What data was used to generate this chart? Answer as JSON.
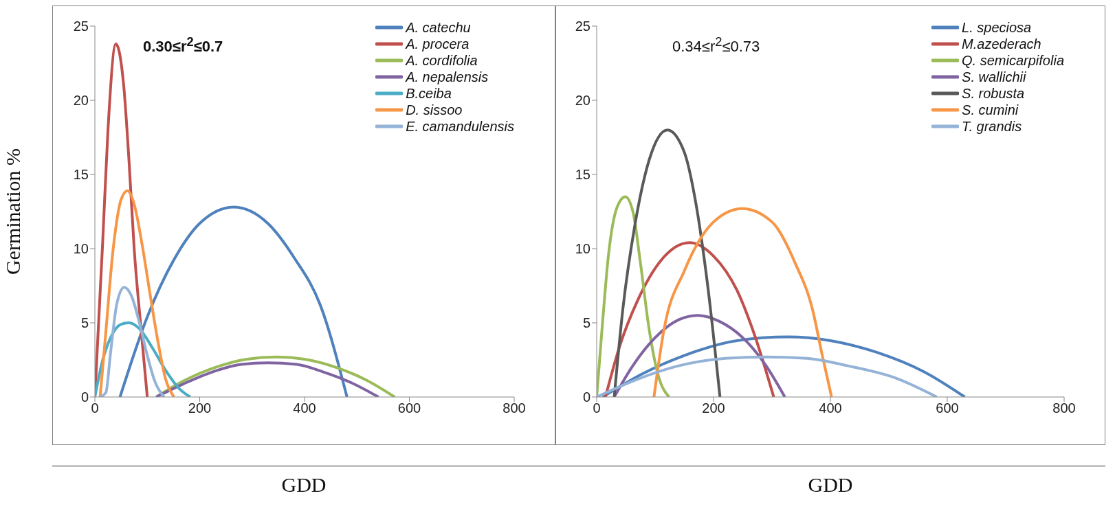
{
  "chart_data": [
    {
      "type": "line",
      "xlabel": "GDD",
      "ylabel": "Germination %",
      "annotations": [
        "0.30≤r$^{2}$≤0.7"
      ],
      "xlim": [
        0,
        800
      ],
      "xticks": [
        0,
        200,
        400,
        600,
        800
      ],
      "ylim": [
        0,
        25
      ],
      "yticks": [
        0,
        5,
        10,
        15,
        20,
        25
      ],
      "legend": "top right",
      "series": [
        {
          "name": "A. catechu",
          "color": "#4f81bd",
          "x": [
            48,
            100,
            150,
            200,
            265,
            330,
            380,
            430,
            481
          ],
          "values": [
            0,
            5.4,
            9.2,
            11.7,
            12.8,
            11.7,
            9.4,
            6.2,
            0
          ]
        },
        {
          "name": "A. procera",
          "color": "#c0504d",
          "x": [
            0,
            15,
            25,
            40,
            55,
            65,
            75,
            87,
            100
          ],
          "values": [
            0,
            10.5,
            18,
            23.8,
            21,
            16,
            10,
            5,
            0
          ]
        },
        {
          "name": "A. cordifolia",
          "color": "#9bbb59",
          "x": [
            117,
            170,
            230,
            290,
            347,
            400,
            460,
            520,
            572
          ],
          "values": [
            0,
            1.1,
            2,
            2.55,
            2.7,
            2.55,
            2,
            1.1,
            0
          ]
        },
        {
          "name": "A. nepalensis",
          "color": "#8064a2",
          "x": [
            117,
            170,
            225,
            280,
            330,
            385,
            435,
            490,
            541
          ],
          "values": [
            0,
            0.9,
            1.7,
            2.2,
            2.3,
            2.2,
            1.7,
            0.95,
            0
          ]
        },
        {
          "name": "B.ceiba",
          "color": "#4bacc6",
          "x": [
            0,
            15,
            30,
            50,
            65,
            85,
            110,
            135,
            160,
            182
          ],
          "values": [
            0,
            2.5,
            4,
            4.9,
            5,
            4.6,
            3.3,
            1.8,
            0.6,
            0
          ]
        },
        {
          "name": "D. sissoo",
          "color": "#f79646",
          "x": [
            10,
            20,
            35,
            50,
            62,
            75,
            90,
            105,
            120,
            135,
            151
          ],
          "values": [
            0,
            4,
            10,
            13.3,
            13.9,
            13,
            10.3,
            7,
            3.8,
            1.2,
            0
          ]
        },
        {
          "name": "E. camandulensis",
          "color": "#95b3d7",
          "x": [
            10,
            21,
            30,
            42,
            56,
            70,
            85,
            100,
            115,
            132
          ],
          "values": [
            0,
            0.3,
            3,
            6.3,
            7.4,
            6.8,
            5,
            2.8,
            1,
            0
          ]
        }
      ]
    },
    {
      "type": "line",
      "xlabel": "GDD",
      "annotations": [
        "0.34≤r$^{2}$≤0.73"
      ],
      "xlim": [
        0,
        800
      ],
      "xticks": [
        0,
        200,
        400,
        600,
        800
      ],
      "ylim": [
        0,
        25
      ],
      "yticks": [
        0,
        5,
        10,
        15,
        20,
        25
      ],
      "legend": "top right",
      "series": [
        {
          "name": "L. speciosa",
          "color": "#4f81bd",
          "x": [
            10,
            80,
            150,
            240,
            327,
            400,
            480,
            560,
            630
          ],
          "values": [
            0,
            1.6,
            2.8,
            3.8,
            4.05,
            3.8,
            3,
            1.7,
            0
          ]
        },
        {
          "name": "M.azederach",
          "color": "#c0504d",
          "x": [
            15,
            40,
            70,
            110,
            159,
            200,
            240,
            270,
            303
          ],
          "values": [
            0,
            3.5,
            6.5,
            9.2,
            10.4,
            9.5,
            7.2,
            4.2,
            0
          ]
        },
        {
          "name": "Q. semicarpifolia",
          "color": "#9bbb59",
          "x": [
            0,
            10,
            20,
            35,
            49,
            62,
            75,
            90,
            105,
            124
          ],
          "values": [
            0,
            5,
            9.5,
            12.8,
            13.5,
            12.5,
            9,
            4.5,
            1.5,
            0
          ]
        },
        {
          "name": "S. wallichii",
          "color": "#8064a2",
          "x": [
            30,
            60,
            100,
            140,
            173,
            210,
            250,
            290,
            322
          ],
          "values": [
            0,
            2,
            4,
            5.2,
            5.5,
            5.1,
            4,
            2.1,
            0
          ]
        },
        {
          "name": "S. robusta",
          "color": "#595959",
          "x": [
            30,
            45,
            65,
            90,
            121,
            150,
            170,
            190,
            211
          ],
          "values": [
            0,
            6,
            11.5,
            16,
            18,
            16.5,
            13,
            7.5,
            0
          ]
        },
        {
          "name": "S. cumini",
          "color": "#f79646",
          "x": [
            98,
            115,
            150,
            200,
            249,
            300,
            340,
            370,
            385,
            402
          ],
          "values": [
            0,
            4.5,
            8.5,
            11.8,
            12.7,
            11.8,
            9,
            5.8,
            3,
            0
          ]
        },
        {
          "name": "T. grandis",
          "color": "#95b3d7",
          "x": [
            0,
            70,
            140,
            220,
            290,
            360,
            430,
            510,
            582
          ],
          "values": [
            0,
            1.2,
            2.1,
            2.6,
            2.7,
            2.6,
            2.1,
            1.3,
            0
          ]
        }
      ]
    }
  ]
}
